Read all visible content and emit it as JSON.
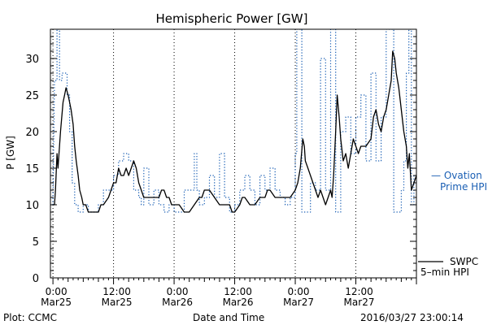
{
  "chart_data": {
    "type": "line",
    "title": "Hemispheric Power [GW]",
    "xlabel": "Date and Time",
    "ylabel": "P [GW]",
    "ylim": [
      0,
      34
    ],
    "y_ticks": [
      0,
      5,
      10,
      15,
      20,
      25,
      30
    ],
    "x_ticks": [
      {
        "x": 0,
        "time": "0:00",
        "date": "Mar25"
      },
      {
        "x": 12,
        "time": "12:00",
        "date": "Mar25"
      },
      {
        "x": 24,
        "time": "0:00",
        "date": "Mar26"
      },
      {
        "x": 36,
        "time": "12:00",
        "date": "Mar26"
      },
      {
        "x": 48,
        "time": "0:00",
        "date": "Mar27"
      },
      {
        "x": 60,
        "time": "12:00",
        "date": "Mar27"
      }
    ],
    "xlim": [
      -0.5,
      72
    ],
    "grid": "dotted-vertical",
    "legend": [
      {
        "label_lines": [
          "— Ovation",
          "Prime HPI"
        ],
        "color": "#1a5fb4",
        "style": "dotted",
        "placement": "right-middle"
      },
      {
        "label_lines": [
          "SWPC",
          "5–min HPI"
        ],
        "color": "#000000",
        "style": "solid",
        "placement": "right-bottom"
      }
    ],
    "series": [
      {
        "name": "SWPC 5-min HPI",
        "color": "#000000",
        "style": "solid",
        "points": [
          [
            0,
            10
          ],
          [
            0.3,
            10
          ],
          [
            0.5,
            12
          ],
          [
            0.8,
            17
          ],
          [
            1.0,
            15
          ],
          [
            1.5,
            20
          ],
          [
            2.0,
            24
          ],
          [
            2.3,
            25
          ],
          [
            2.6,
            26
          ],
          [
            3.0,
            25
          ],
          [
            3.3,
            24
          ],
          [
            3.6,
            23
          ],
          [
            4.0,
            21
          ],
          [
            4.3,
            18
          ],
          [
            4.6,
            16
          ],
          [
            5.0,
            14
          ],
          [
            5.3,
            12
          ],
          [
            5.7,
            11
          ],
          [
            6.0,
            10
          ],
          [
            6.5,
            10
          ],
          [
            7,
            9
          ],
          [
            8,
            9
          ],
          [
            9,
            9
          ],
          [
            9.5,
            10
          ],
          [
            10,
            10
          ],
          [
            11,
            11
          ],
          [
            11.5,
            12
          ],
          [
            12,
            13
          ],
          [
            12.5,
            13
          ],
          [
            13,
            15
          ],
          [
            13.5,
            14
          ],
          [
            14,
            14
          ],
          [
            14.5,
            15
          ],
          [
            15,
            14
          ],
          [
            15.5,
            15
          ],
          [
            16,
            16
          ],
          [
            16.5,
            15
          ],
          [
            17,
            13
          ],
          [
            17.5,
            12
          ],
          [
            18,
            11
          ],
          [
            19,
            11
          ],
          [
            20,
            11
          ],
          [
            21,
            11
          ],
          [
            21.5,
            12
          ],
          [
            22,
            12
          ],
          [
            22.5,
            11
          ],
          [
            23,
            11
          ],
          [
            23.5,
            10
          ],
          [
            24,
            10
          ],
          [
            25,
            10
          ],
          [
            26,
            9
          ],
          [
            27,
            9
          ],
          [
            28,
            10
          ],
          [
            29,
            11
          ],
          [
            29.5,
            11
          ],
          [
            30,
            12
          ],
          [
            31,
            12
          ],
          [
            32,
            11
          ],
          [
            33,
            10
          ],
          [
            34,
            10
          ],
          [
            35,
            10
          ],
          [
            35.5,
            9
          ],
          [
            36,
            9
          ],
          [
            37,
            10
          ],
          [
            37.5,
            11
          ],
          [
            38,
            11
          ],
          [
            39,
            10
          ],
          [
            40,
            10
          ],
          [
            41,
            11
          ],
          [
            42,
            11
          ],
          [
            42.5,
            12
          ],
          [
            43,
            12
          ],
          [
            44,
            11
          ],
          [
            45,
            11
          ],
          [
            46,
            11
          ],
          [
            47,
            11
          ],
          [
            48,
            12
          ],
          [
            48.5,
            13
          ],
          [
            49,
            15
          ],
          [
            49.5,
            19
          ],
          [
            49.8,
            18
          ],
          [
            50,
            16
          ],
          [
            50.5,
            15
          ],
          [
            51,
            14
          ],
          [
            51.5,
            13
          ],
          [
            52,
            12
          ],
          [
            52.5,
            11
          ],
          [
            53,
            12
          ],
          [
            53.5,
            11
          ],
          [
            54,
            10
          ],
          [
            54.5,
            11
          ],
          [
            55,
            12
          ],
          [
            55.3,
            11
          ],
          [
            55.6,
            14
          ],
          [
            56,
            20
          ],
          [
            56.3,
            25
          ],
          [
            56.7,
            22
          ],
          [
            57,
            19
          ],
          [
            57.5,
            16
          ],
          [
            58,
            17
          ],
          [
            58.5,
            15
          ],
          [
            59,
            17
          ],
          [
            59.5,
            19
          ],
          [
            60,
            18
          ],
          [
            60.5,
            17
          ],
          [
            61,
            18
          ],
          [
            62,
            18
          ],
          [
            63,
            19
          ],
          [
            63.5,
            22
          ],
          [
            64,
            23
          ],
          [
            64.5,
            21
          ],
          [
            65,
            20
          ],
          [
            65.5,
            22
          ],
          [
            66,
            23
          ],
          [
            66.5,
            25
          ],
          [
            67,
            27
          ],
          [
            67.3,
            31
          ],
          [
            67.7,
            30
          ],
          [
            68,
            28
          ],
          [
            68.5,
            26
          ],
          [
            69,
            23
          ],
          [
            69.5,
            20
          ],
          [
            70,
            18
          ],
          [
            70.3,
            15
          ],
          [
            70.6,
            17
          ],
          [
            71,
            12
          ],
          [
            71.5,
            13
          ],
          [
            72,
            14
          ],
          [
            72.5,
            12
          ],
          [
            73,
            12
          ]
        ]
      },
      {
        "name": "Ovation Prime HPI",
        "color": "#1a5fb4",
        "style": "dotted",
        "points": [
          [
            0,
            10
          ],
          [
            0.3,
            27
          ],
          [
            0.8,
            27
          ],
          [
            0.8,
            34
          ],
          [
            1.3,
            34
          ],
          [
            1.3,
            27
          ],
          [
            1.8,
            27
          ],
          [
            1.8,
            28
          ],
          [
            2.8,
            28
          ],
          [
            2.8,
            25
          ],
          [
            3.3,
            25
          ],
          [
            3.3,
            20
          ],
          [
            3.8,
            20
          ],
          [
            3.8,
            13
          ],
          [
            4.3,
            13
          ],
          [
            4.3,
            10
          ],
          [
            5,
            10
          ],
          [
            5,
            9
          ],
          [
            6,
            9
          ],
          [
            6,
            10
          ],
          [
            7,
            10
          ],
          [
            7,
            9
          ],
          [
            9,
            9
          ],
          [
            9,
            10
          ],
          [
            10,
            10
          ],
          [
            10,
            12
          ],
          [
            12,
            12
          ],
          [
            12,
            14
          ],
          [
            13,
            14
          ],
          [
            13,
            16
          ],
          [
            14,
            16
          ],
          [
            14,
            17
          ],
          [
            15,
            17
          ],
          [
            15,
            16
          ],
          [
            16,
            16
          ],
          [
            16,
            12
          ],
          [
            17,
            12
          ],
          [
            17,
            11
          ],
          [
            17.5,
            11
          ],
          [
            17.5,
            10
          ],
          [
            18,
            10
          ],
          [
            18,
            15
          ],
          [
            19,
            15
          ],
          [
            19,
            10
          ],
          [
            20,
            10
          ],
          [
            20,
            12
          ],
          [
            21,
            12
          ],
          [
            21,
            10
          ],
          [
            22,
            10
          ],
          [
            22,
            9
          ],
          [
            23,
            9
          ],
          [
            23,
            10
          ],
          [
            24,
            10
          ],
          [
            24,
            9
          ],
          [
            26,
            9
          ],
          [
            26,
            12
          ],
          [
            28,
            12
          ],
          [
            28,
            17
          ],
          [
            28.5,
            17
          ],
          [
            28.5,
            12
          ],
          [
            29,
            12
          ],
          [
            29,
            10
          ],
          [
            30,
            10
          ],
          [
            30,
            11
          ],
          [
            31,
            11
          ],
          [
            31,
            14
          ],
          [
            32,
            14
          ],
          [
            32,
            11
          ],
          [
            33,
            11
          ],
          [
            33,
            17
          ],
          [
            34,
            17
          ],
          [
            34,
            11
          ],
          [
            35,
            11
          ],
          [
            35,
            9
          ],
          [
            36,
            9
          ],
          [
            36,
            10
          ],
          [
            37,
            10
          ],
          [
            37,
            12
          ],
          [
            38,
            12
          ],
          [
            38,
            14
          ],
          [
            39,
            14
          ],
          [
            39,
            12
          ],
          [
            40,
            12
          ],
          [
            40,
            10
          ],
          [
            41,
            10
          ],
          [
            41,
            14
          ],
          [
            42,
            14
          ],
          [
            42,
            12
          ],
          [
            43,
            12
          ],
          [
            43,
            15
          ],
          [
            44,
            15
          ],
          [
            44,
            12
          ],
          [
            45,
            12
          ],
          [
            45,
            11
          ],
          [
            46,
            11
          ],
          [
            46,
            10
          ],
          [
            47,
            10
          ],
          [
            47,
            11
          ],
          [
            48,
            11
          ],
          [
            48,
            17
          ],
          [
            48.3,
            17
          ],
          [
            48.3,
            34
          ],
          [
            49.3,
            34
          ],
          [
            49.3,
            9
          ],
          [
            51,
            9
          ],
          [
            51,
            13
          ],
          [
            52,
            13
          ],
          [
            52,
            12
          ],
          [
            53,
            12
          ],
          [
            53,
            30
          ],
          [
            54,
            30
          ],
          [
            54,
            12
          ],
          [
            55,
            12
          ],
          [
            55,
            34
          ],
          [
            56,
            34
          ],
          [
            56,
            9
          ],
          [
            57,
            9
          ],
          [
            57,
            20
          ],
          [
            58,
            20
          ],
          [
            58,
            22
          ],
          [
            59,
            22
          ],
          [
            59,
            17
          ],
          [
            60,
            17
          ],
          [
            60,
            22
          ],
          [
            61,
            22
          ],
          [
            61,
            25
          ],
          [
            62,
            25
          ],
          [
            62,
            16
          ],
          [
            63,
            16
          ],
          [
            63,
            28
          ],
          [
            64,
            28
          ],
          [
            64,
            16
          ],
          [
            65,
            16
          ],
          [
            65,
            22
          ],
          [
            66,
            22
          ],
          [
            66,
            34
          ],
          [
            67,
            34
          ],
          [
            67,
            34
          ],
          [
            67.5,
            34
          ],
          [
            67.5,
            9
          ],
          [
            68.5,
            9
          ],
          [
            68.5,
            9
          ],
          [
            69,
            9
          ],
          [
            69,
            12
          ],
          [
            69.5,
            12
          ],
          [
            69.5,
            16
          ],
          [
            70,
            16
          ],
          [
            70,
            28
          ],
          [
            70.5,
            28
          ],
          [
            70.5,
            34
          ],
          [
            71,
            34
          ],
          [
            71,
            10
          ],
          [
            71.5,
            10
          ],
          [
            71.5,
            14
          ],
          [
            72.5,
            14
          ],
          [
            72.5,
            12
          ],
          [
            73,
            12
          ]
        ]
      }
    ]
  },
  "footer": {
    "left": "Plot: CCMC",
    "center": "Date and Time",
    "right": "2016/03/27 23:00:14"
  }
}
